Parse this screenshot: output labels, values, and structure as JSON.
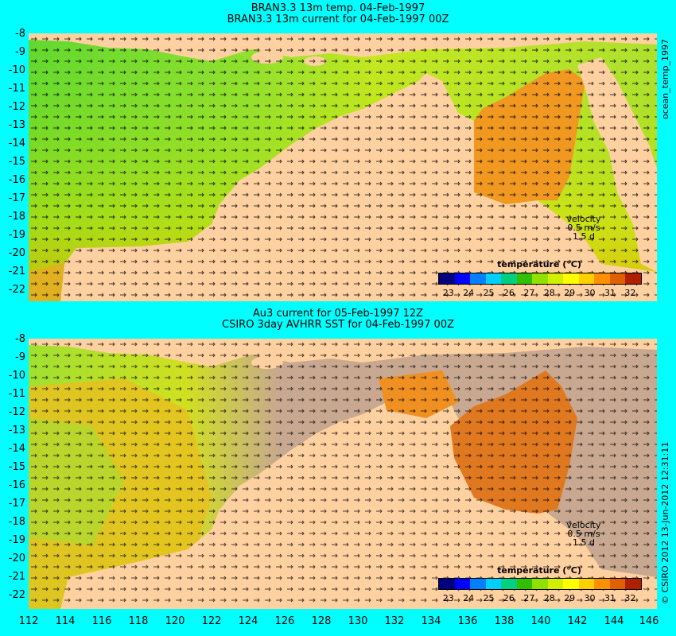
{
  "top_panel": {
    "title_line1": "BRAN3.3 13m temp. 04-Feb-1997",
    "title_line2": "BRAN3.3 13m current for 04-Feb-1997 00Z",
    "velocity_label": "velocity",
    "velocity_scale": "0.5 m/s",
    "velocity_time": "1.5 d",
    "colorbar_title": "temperature (°C)",
    "side_label": "ocean_temp_1997"
  },
  "bottom_panel": {
    "title_line1": "Au3 current for 05-Feb-1997 12Z",
    "title_line2": "CSIRO 3day AVHRR SST for 04-Feb-1997 00Z",
    "velocity_label": "velocity",
    "velocity_scale": "0.5 m/s",
    "velocity_time": "1.5 d",
    "colorbar_title": "temperature (°C)",
    "side_label": "© CSIRO 2012  13-Jun-2012 12:31:11"
  },
  "colorbar_ticks": [
    "23",
    "24",
    "25",
    "26",
    "27",
    "28",
    "29",
    "30",
    "31",
    "32"
  ],
  "colorbar_colors": [
    "#00007f",
    "#0000ff",
    "#0080ff",
    "#00d0ff",
    "#00d080",
    "#30c000",
    "#90e000",
    "#d0f000",
    "#ffff00",
    "#ffd000",
    "#ff9000",
    "#e06000",
    "#b02000"
  ],
  "lat_ticks": [
    "-8",
    "-9",
    "-10",
    "-11",
    "-12",
    "-13",
    "-14",
    "-15",
    "-16",
    "-17",
    "-18",
    "-19",
    "-20",
    "-21",
    "-22"
  ],
  "lon_ticks": [
    "112",
    "114",
    "116",
    "118",
    "120",
    "122",
    "124",
    "126",
    "128",
    "130",
    "132",
    "134",
    "136",
    "138",
    "140",
    "142",
    "144",
    "146"
  ],
  "colors": {
    "background": "#00ffff",
    "land": "#ffd0a0",
    "no_data": "#c8a890",
    "warm_sea": "#f0a000",
    "cool_sea": "#70e040"
  }
}
